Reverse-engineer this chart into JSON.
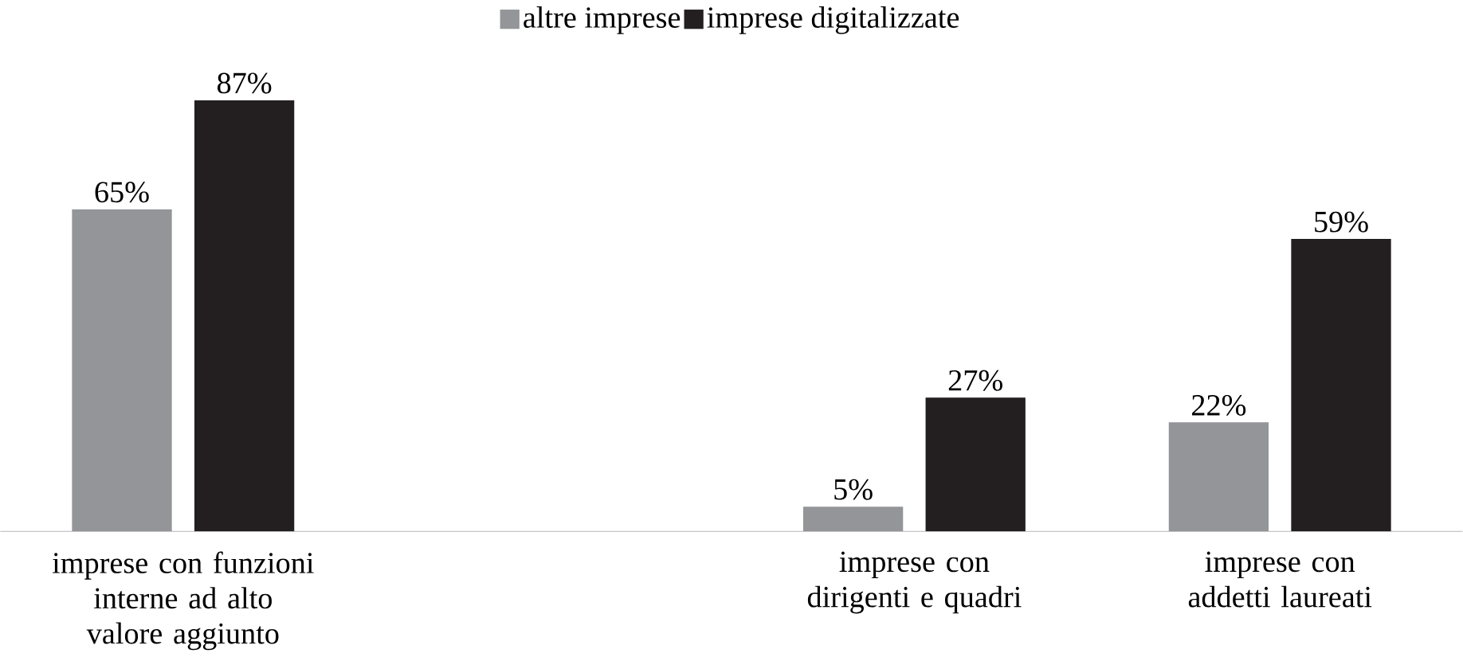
{
  "chart_data": {
    "type": "bar",
    "categories": [
      "imprese con funzioni interne ad alto valore aggiunto",
      null,
      "imprese con dirigenti e quadri",
      "imprese con addetti laureati"
    ],
    "series": [
      {
        "name": "altre imprese",
        "color": "#939598",
        "values": [
          65,
          null,
          5,
          22
        ],
        "value_labels": [
          "65%",
          null,
          "5%",
          "22%"
        ]
      },
      {
        "name": "imprese digitalizzate",
        "color": "#231f20",
        "values": [
          87,
          null,
          27,
          59
        ],
        "value_labels": [
          "87%",
          null,
          "27%",
          "59%"
        ]
      }
    ],
    "legend": "top"
  }
}
